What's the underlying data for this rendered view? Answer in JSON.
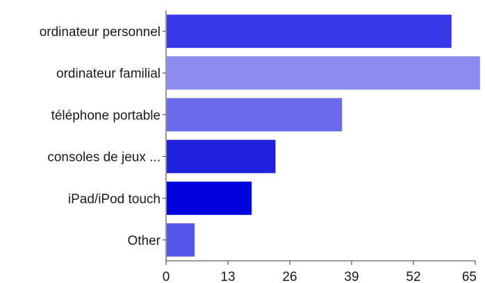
{
  "chart_data": {
    "type": "bar",
    "orientation": "horizontal",
    "categories": [
      "ordinateur personnel",
      "ordinateur familial",
      "téléphone portable",
      "consoles de jeux ...",
      "iPad/iPod touch",
      "Other"
    ],
    "values": [
      60,
      66,
      37,
      23,
      18,
      6
    ],
    "colors": [
      "#3838e6",
      "#8b8bef",
      "#6a6aea",
      "#2121dc",
      "#0202dd",
      "#5555e8"
    ],
    "xlim": [
      0,
      65
    ],
    "xticks": [
      0,
      13,
      26,
      39,
      52,
      65
    ],
    "grid": false
  }
}
